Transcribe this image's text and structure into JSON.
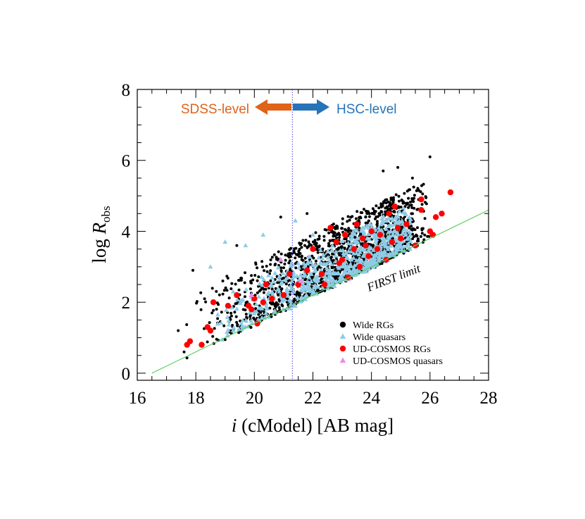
{
  "chart_data": {
    "type": "scatter",
    "xlabel_italic": "i",
    "xlabel_rest": " (cModel) [AB mag]",
    "ylabel_main": "log ",
    "ylabel_italic": "R",
    "ylabel_sub": "obs",
    "xlim": [
      16,
      28
    ],
    "ylim": [
      -0.2,
      8
    ],
    "xticks": [
      "16",
      "18",
      "20",
      "22",
      "24",
      "26",
      "28"
    ],
    "yticks": [
      "0",
      "2",
      "4",
      "6",
      "8"
    ],
    "grid": false,
    "legend_position": "lower-right",
    "divider_x": 21.3,
    "divider_left_label": "SDSS-level",
    "divider_right_label": "HSC-level",
    "first_limit": {
      "label": "FIRST limit",
      "x": [
        16.5,
        28
      ],
      "y": [
        0.0,
        4.6
      ]
    },
    "series": [
      {
        "name": "Wide RGs",
        "marker": "circle",
        "color": "#000000",
        "cloud": {
          "x_range": [
            17.3,
            26.0
          ],
          "offset_max": 1.7,
          "n": 1500
        },
        "points": [
          [
            26.0,
            6.1
          ],
          [
            24.9,
            5.8
          ],
          [
            25.4,
            5.5
          ],
          [
            24.4,
            5.7
          ],
          [
            21.8,
            4.5
          ],
          [
            20.9,
            4.4
          ],
          [
            19.4,
            3.6
          ],
          [
            17.9,
            2.9
          ],
          [
            18.3,
            2.1
          ],
          [
            17.4,
            1.2
          ],
          [
            17.6,
            0.6
          ]
        ]
      },
      {
        "name": "Wide quasars",
        "marker": "triangle",
        "color": "#8ecce6",
        "cloud": {
          "x_range": [
            18.0,
            25.6
          ],
          "offset_max": 1.2,
          "n": 650
        },
        "points": [
          [
            18.5,
            3.0
          ],
          [
            19.0,
            3.7
          ],
          [
            20.3,
            3.9
          ],
          [
            21.4,
            4.3
          ],
          [
            19.7,
            3.6
          ],
          [
            22.0,
            3.9
          ]
        ]
      },
      {
        "name": "UD-COSMOS RGs",
        "marker": "circle",
        "color": "#ff0000",
        "points": [
          [
            17.7,
            0.8
          ],
          [
            17.8,
            0.9
          ],
          [
            18.2,
            0.8
          ],
          [
            18.4,
            1.3
          ],
          [
            18.5,
            1.2
          ],
          [
            18.6,
            2.0
          ],
          [
            19.1,
            1.9
          ],
          [
            19.4,
            2.2
          ],
          [
            19.8,
            1.9
          ],
          [
            19.9,
            1.8
          ],
          [
            20.0,
            2.1
          ],
          [
            20.1,
            1.4
          ],
          [
            20.3,
            2.0
          ],
          [
            20.4,
            2.5
          ],
          [
            20.6,
            2.1
          ],
          [
            21.0,
            2.2
          ],
          [
            21.2,
            2.8
          ],
          [
            21.5,
            2.5
          ],
          [
            21.8,
            2.9
          ],
          [
            22.0,
            3.5
          ],
          [
            22.3,
            2.8
          ],
          [
            22.6,
            4.1
          ],
          [
            22.4,
            2.5
          ],
          [
            22.8,
            3.7
          ],
          [
            23.0,
            3.2
          ],
          [
            23.1,
            3.9
          ],
          [
            23.2,
            2.7
          ],
          [
            23.4,
            3.5
          ],
          [
            23.5,
            4.2
          ],
          [
            23.6,
            3.0
          ],
          [
            23.7,
            3.8
          ],
          [
            23.9,
            3.3
          ],
          [
            24.0,
            4.0
          ],
          [
            24.2,
            3.5
          ],
          [
            24.3,
            3.9
          ],
          [
            24.5,
            3.2
          ],
          [
            24.6,
            4.5
          ],
          [
            24.7,
            3.7
          ],
          [
            24.9,
            4.1
          ],
          [
            25.0,
            3.8
          ],
          [
            25.2,
            4.2
          ],
          [
            25.5,
            3.6
          ],
          [
            25.7,
            4.9
          ],
          [
            25.7,
            4.6
          ],
          [
            26.0,
            4.0
          ],
          [
            26.1,
            3.9
          ],
          [
            26.2,
            4.4
          ],
          [
            26.4,
            4.5
          ],
          [
            26.7,
            5.1
          ],
          [
            24.8,
            4.7
          ],
          [
            23.8,
            3.6
          ],
          [
            22.9,
            3.1
          ]
        ]
      },
      {
        "name": "UD-COSMOS quasars",
        "marker": "triangle",
        "color": "#e88ee8",
        "points": [
          [
            20.9,
            3.2
          ],
          [
            19.9,
            2.2
          ],
          [
            21.6,
            2.6
          ]
        ]
      }
    ]
  }
}
